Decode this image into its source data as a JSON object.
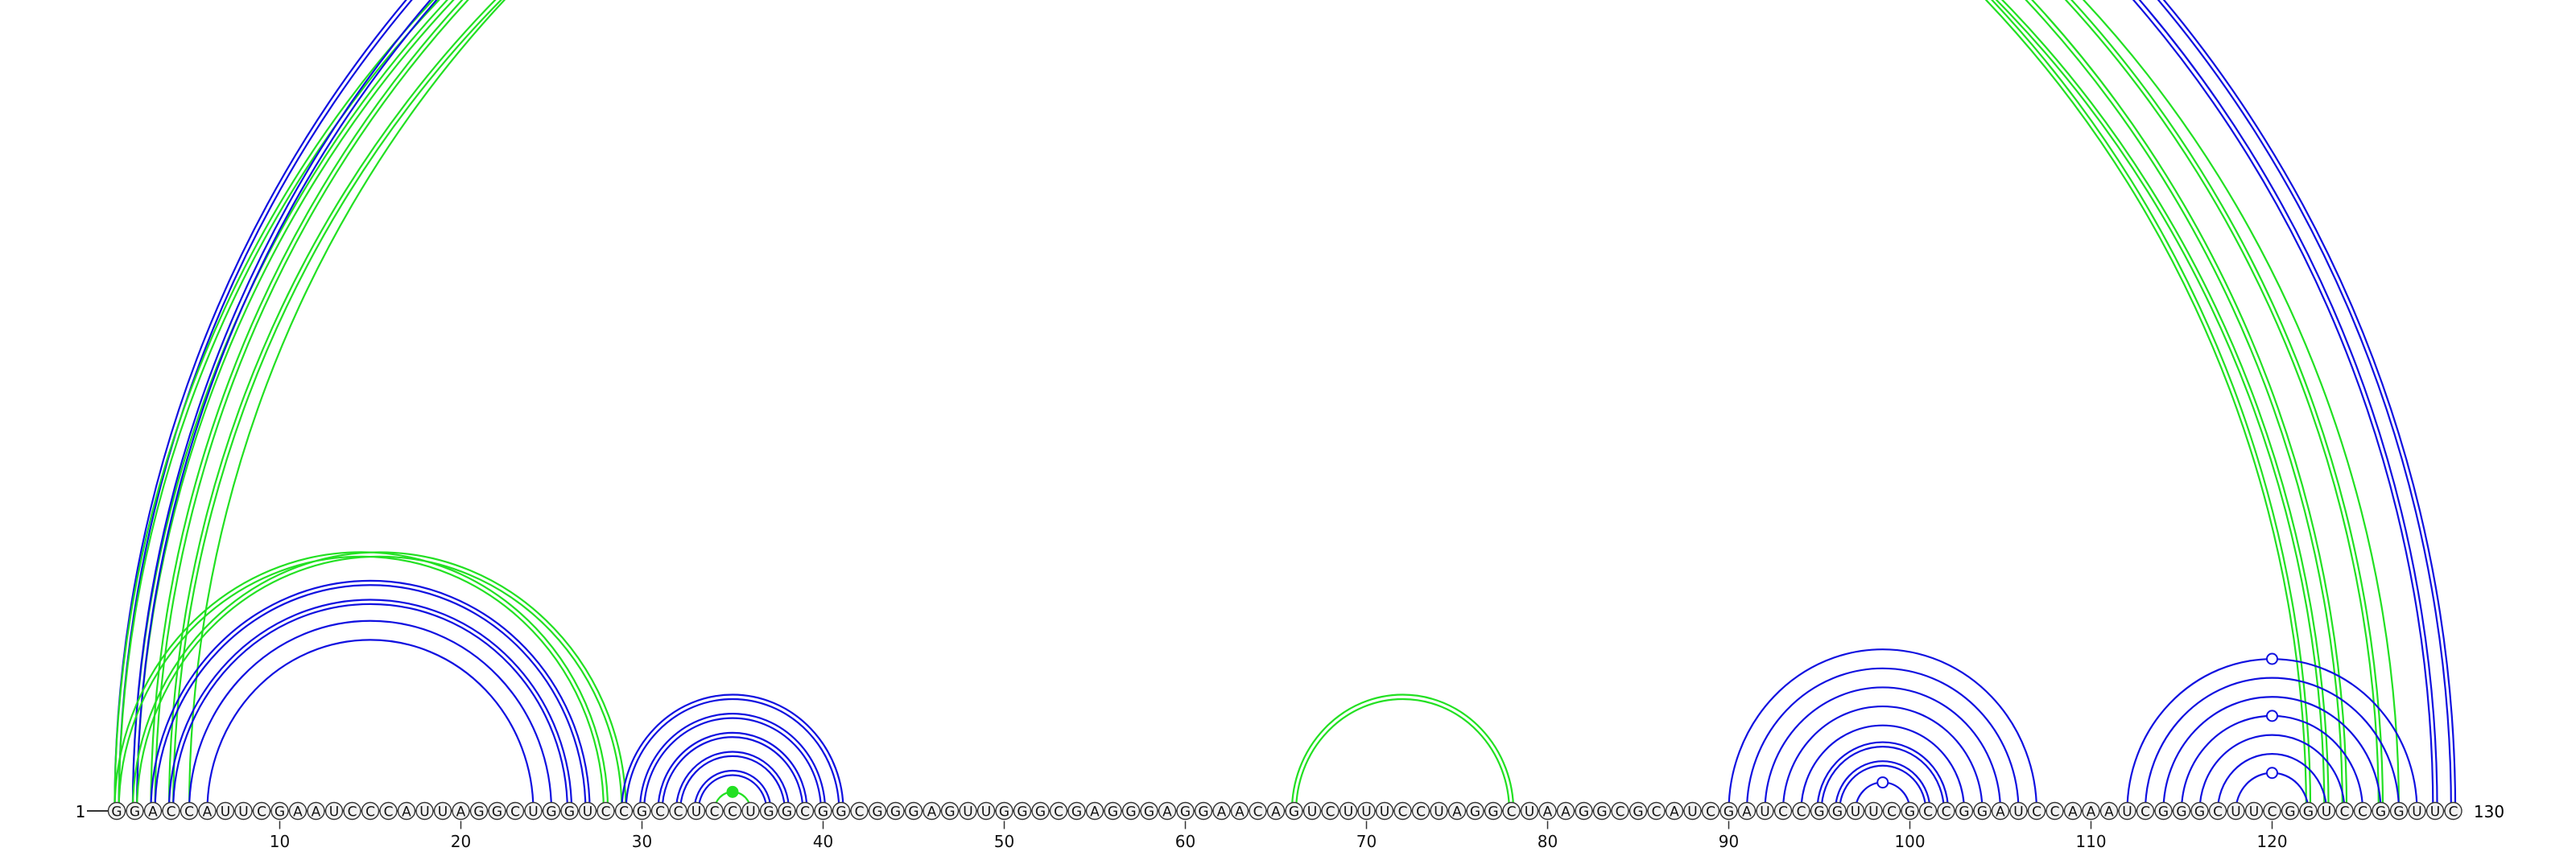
{
  "sequence": "GGACCAUUCGAAUCCCAUUAGGCUGGUCCGCCUCCUGGCGGCGGGAGUUGGGCGAGGGAGGAACAGUCUUUCCUAGGCUAAGGCGCAUCGAUCCGGUUCGCCGGAUCCAAAUCGGGCUUCGGUCCGGUUC",
  "start_label": "1",
  "end_label": "130",
  "tick_labels": [
    "10",
    "20",
    "30",
    "40",
    "50",
    "60",
    "70",
    "80",
    "90",
    "100",
    "110",
    "120"
  ],
  "colors": {
    "blue": "#1010e0",
    "green": "#22e022",
    "ink": "#333333",
    "nucleotide_fill": "#f2f2f2"
  },
  "arc_groups": [
    {
      "color": "blue",
      "from": 1,
      "to": 130,
      "count": 2
    },
    {
      "color": "green",
      "from": 1,
      "to": 122,
      "count": 2
    },
    {
      "color": "green",
      "from": 2,
      "to": 124,
      "count": 2
    },
    {
      "color": "green",
      "from": 3,
      "to": 126,
      "count": 2
    },
    {
      "color": "green",
      "from": 4,
      "to": 123,
      "count": 2
    },
    {
      "color": "green",
      "from": 5,
      "to": 127,
      "count": 1
    },
    {
      "color": "blue",
      "from": 2,
      "to": 129,
      "count": 2
    },
    {
      "color": "green",
      "from": 1,
      "to": 28,
      "count": 2
    },
    {
      "color": "green",
      "from": 2,
      "to": 29,
      "count": 2
    },
    {
      "color": "blue",
      "from": 3,
      "to": 27,
      "count": 2
    },
    {
      "color": "blue",
      "from": 4,
      "to": 26,
      "count": 2
    },
    {
      "color": "blue",
      "from": 5,
      "to": 25,
      "count": 1
    },
    {
      "color": "blue",
      "from": 6,
      "to": 24,
      "count": 1
    },
    {
      "color": "blue",
      "from": 29,
      "to": 41,
      "count": 2
    },
    {
      "color": "blue",
      "from": 30,
      "to": 40,
      "count": 2
    },
    {
      "color": "blue",
      "from": 31,
      "to": 39,
      "count": 2
    },
    {
      "color": "blue",
      "from": 32,
      "to": 38,
      "count": 2
    },
    {
      "color": "blue",
      "from": 33,
      "to": 37,
      "count": 2
    },
    {
      "color": "green",
      "from": 34,
      "to": 36,
      "count": 1
    },
    {
      "color": "green",
      "from": 66,
      "to": 78,
      "count": 2
    },
    {
      "color": "blue",
      "from": 90,
      "to": 107,
      "count": 1
    },
    {
      "color": "blue",
      "from": 91,
      "to": 106,
      "count": 1
    },
    {
      "color": "blue",
      "from": 92,
      "to": 105,
      "count": 1
    },
    {
      "color": "blue",
      "from": 93,
      "to": 104,
      "count": 1
    },
    {
      "color": "blue",
      "from": 94,
      "to": 103,
      "count": 1
    },
    {
      "color": "blue",
      "from": 95,
      "to": 102,
      "count": 2
    },
    {
      "color": "blue",
      "from": 96,
      "to": 101,
      "count": 2
    },
    {
      "color": "blue",
      "from": 97,
      "to": 100,
      "count": 1
    },
    {
      "color": "blue",
      "from": 112,
      "to": 128,
      "count": 1
    },
    {
      "color": "blue",
      "from": 113,
      "to": 127,
      "count": 1
    },
    {
      "color": "blue",
      "from": 114,
      "to": 126,
      "count": 1
    },
    {
      "color": "blue",
      "from": 115,
      "to": 125,
      "count": 1
    },
    {
      "color": "blue",
      "from": 116,
      "to": 124,
      "count": 1
    },
    {
      "color": "blue",
      "from": 117,
      "to": 123,
      "count": 1
    },
    {
      "color": "blue",
      "from": 118,
      "to": 122,
      "count": 1
    }
  ],
  "apex_markers": [
    {
      "color": "blue",
      "from": 1,
      "to": 130,
      "filled": false
    },
    {
      "color": "green",
      "from": 34,
      "to": 36,
      "filled": true
    },
    {
      "color": "blue",
      "from": 97,
      "to": 100,
      "filled": false
    },
    {
      "color": "blue",
      "from": 112,
      "to": 128,
      "filled": false
    },
    {
      "color": "blue",
      "from": 115,
      "to": 125,
      "filled": false
    },
    {
      "color": "blue",
      "from": 118,
      "to": 122,
      "filled": false
    }
  ]
}
